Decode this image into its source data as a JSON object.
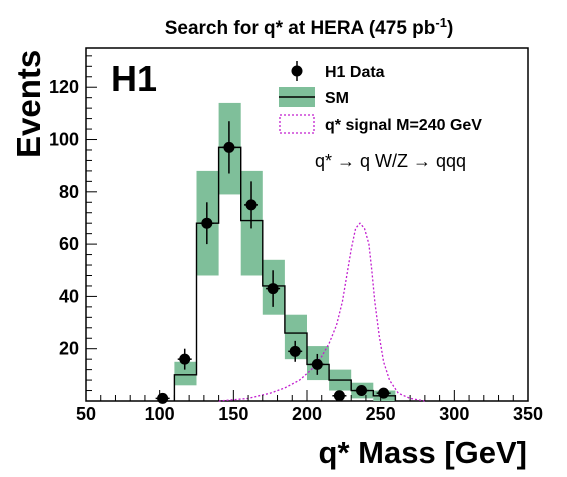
{
  "chart_data": {
    "type": "histogram",
    "title_main": "Search for q* at HERA (475 pb",
    "title_sup": "-1",
    "title_end": ")",
    "experiment_label": "H1",
    "xlabel": "q* Mass [GeV]",
    "ylabel": "Events",
    "xlim": [
      50,
      350
    ],
    "ylim": [
      0,
      135
    ],
    "x_ticks": [
      50,
      100,
      150,
      200,
      250,
      300,
      350
    ],
    "y_ticks": [
      20,
      40,
      60,
      80,
      100,
      120
    ],
    "annotation": "q* → q W/Z → qqq",
    "bin_edges": [
      110,
      125,
      140,
      155,
      170,
      185,
      200,
      215,
      230,
      245,
      260
    ],
    "sm_values": [
      10,
      68,
      97,
      69,
      44,
      26,
      14,
      8,
      4,
      2
    ],
    "sm_band": [
      [
        6,
        15
      ],
      [
        48,
        88
      ],
      [
        79,
        114
      ],
      [
        48,
        88
      ],
      [
        33,
        54
      ],
      [
        16,
        33
      ],
      [
        8,
        21
      ],
      [
        4,
        12
      ],
      [
        1,
        7
      ],
      [
        0,
        4
      ]
    ],
    "data_points": [
      {
        "x": 102,
        "y": 1,
        "err": 1
      },
      {
        "x": 117,
        "y": 16,
        "err": 4
      },
      {
        "x": 132,
        "y": 68,
        "err": 8
      },
      {
        "x": 147,
        "y": 97,
        "err": 10
      },
      {
        "x": 162,
        "y": 75,
        "err": 9
      },
      {
        "x": 177,
        "y": 43,
        "err": 7
      },
      {
        "x": 192,
        "y": 19,
        "err": 4
      },
      {
        "x": 207,
        "y": 14,
        "err": 4
      },
      {
        "x": 222,
        "y": 2,
        "err": 1.5
      },
      {
        "x": 237,
        "y": 4,
        "err": 2
      },
      {
        "x": 252,
        "y": 3,
        "err": 2
      }
    ],
    "signal_curve": [
      [
        140,
        0
      ],
      [
        160,
        1
      ],
      [
        175,
        3
      ],
      [
        185,
        5
      ],
      [
        195,
        8
      ],
      [
        203,
        12
      ],
      [
        210,
        17
      ],
      [
        215,
        22
      ],
      [
        220,
        29
      ],
      [
        224,
        38
      ],
      [
        227,
        48
      ],
      [
        230,
        58
      ],
      [
        233,
        66
      ],
      [
        236,
        68
      ],
      [
        239,
        66
      ],
      [
        242,
        60
      ],
      [
        244,
        50
      ],
      [
        246,
        38
      ],
      [
        249,
        25
      ],
      [
        252,
        15
      ],
      [
        256,
        8
      ],
      [
        262,
        3
      ],
      [
        270,
        1
      ],
      [
        280,
        0
      ]
    ],
    "legend": [
      {
        "label": "H1 Data",
        "marker": "point"
      },
      {
        "label": "SM",
        "marker": "band"
      },
      {
        "label": "q* signal M=240 GeV",
        "marker": "dashed-box"
      }
    ],
    "colors": {
      "sm_band": "#7fbf9a",
      "signal": "#c21fcf",
      "data": "#000000"
    }
  }
}
